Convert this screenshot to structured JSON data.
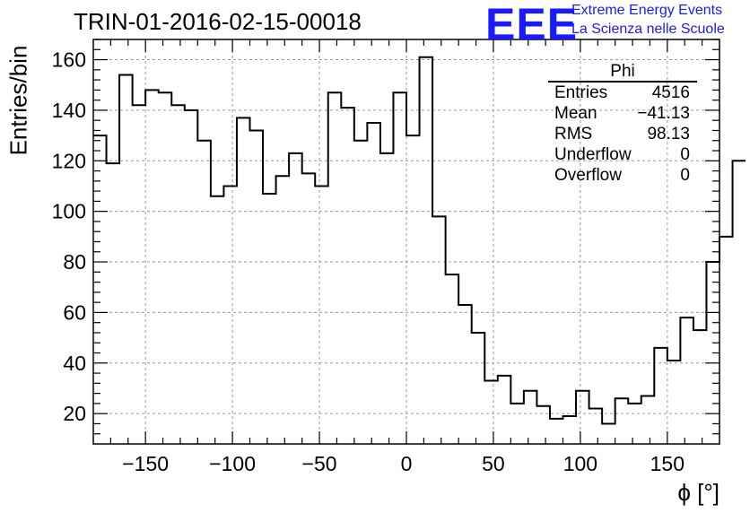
{
  "title": "TRIN-01-2016-02-15-00018",
  "logo": {
    "text": "EEE",
    "line1": "Extreme Energy Events",
    "line2": "La Scienza nelle Scuole",
    "color": "#1a1aff"
  },
  "stats": {
    "name": "Phi",
    "rows": [
      {
        "label": "Entries",
        "value": "4516"
      },
      {
        "label": "Mean",
        "value": "−41.13"
      },
      {
        "label": "RMS",
        "value": "98.13"
      },
      {
        "label": "Underflow",
        "value": "0"
      },
      {
        "label": "Overflow",
        "value": "0"
      }
    ]
  },
  "chart_data": {
    "type": "histogram",
    "xlabel": "ϕ [°]",
    "ylabel": "Entries/bin",
    "xlim": [
      -180,
      180
    ],
    "ylim": [
      8,
      168
    ],
    "bin_width": 7.5,
    "bin_edges_start": -180,
    "values": [
      130,
      119,
      154,
      142,
      148,
      147,
      142,
      140,
      128,
      106,
      110,
      137,
      132,
      107,
      114,
      123,
      115,
      110,
      147,
      141,
      128,
      135,
      123,
      147,
      130,
      161,
      98,
      75,
      63,
      52,
      33,
      35,
      24,
      29,
      23,
      18,
      19,
      29,
      22,
      16,
      26,
      24,
      27,
      46,
      41,
      58,
      53,
      80,
      90,
      120
    ],
    "x_ticks": [
      -150,
      -100,
      -50,
      0,
      50,
      100,
      150
    ],
    "x_tick_labels": [
      "−150",
      "−100",
      "−50",
      "0",
      "50",
      "100",
      "150"
    ],
    "y_ticks": [
      20,
      40,
      60,
      80,
      100,
      120,
      140,
      160
    ],
    "y_tick_labels": [
      "20",
      "40",
      "60",
      "80",
      "100",
      "120",
      "140",
      "160"
    ],
    "grid": true,
    "line_color": "#000000"
  }
}
